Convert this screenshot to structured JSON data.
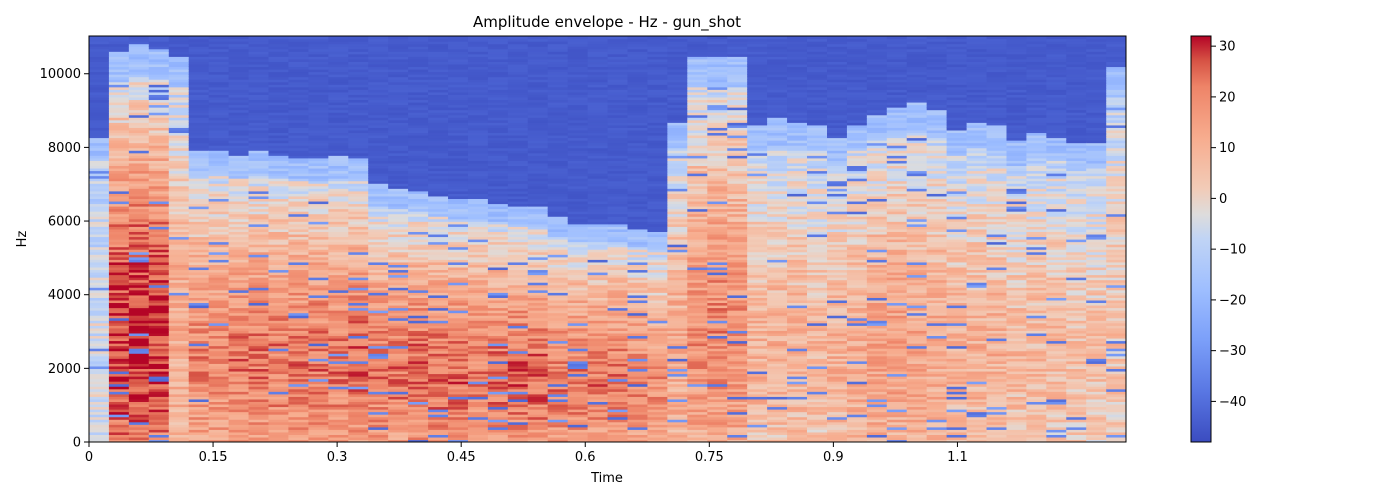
{
  "chart_data": {
    "type": "heatmap",
    "title": "Amplitude envelope - Hz - gun_shot",
    "xlabel": "Time",
    "ylabel": "Hz",
    "xlim": [
      0,
      1.2538
    ],
    "ylim": [
      0,
      11025
    ],
    "x_ticks": [
      0,
      0.15,
      0.3,
      0.45,
      0.6,
      0.75,
      0.9,
      1.05
    ],
    "x_tick_labels": [
      "0",
      "0.15",
      "0.3",
      "0.45",
      "0.6",
      "0.75",
      "0.9",
      "1.1"
    ],
    "y_ticks": [
      0,
      2000,
      4000,
      6000,
      8000,
      10000
    ],
    "y_tick_labels": [
      "0",
      "2000",
      "4000",
      "6000",
      "8000",
      "10000"
    ],
    "colorbar": {
      "range": [
        -48,
        32
      ],
      "colormap": "coolwarm",
      "ticks": [
        30,
        20,
        10,
        0,
        -10,
        -20,
        -30,
        -40
      ],
      "tick_labels": [
        "30",
        "20",
        "10",
        "0",
        "−10",
        "−20",
        "−30",
        "−40"
      ]
    },
    "frame_times": [
      0.0,
      0.0241,
      0.0482,
      0.0723,
      0.0965,
      0.1206,
      0.1447,
      0.1688,
      0.1929,
      0.217,
      0.2411,
      0.2653,
      0.2894,
      0.3135,
      0.3376,
      0.3617,
      0.3858,
      0.41,
      0.4341,
      0.4582,
      0.4823,
      0.5064,
      0.5305,
      0.5546,
      0.5788,
      0.6029,
      0.627,
      0.6511,
      0.6752,
      0.6993,
      0.7234,
      0.7476,
      0.7717,
      0.7958,
      0.8199,
      0.844,
      0.8681,
      0.8923,
      0.9164,
      0.9405,
      0.9646,
      0.9887,
      1.0128,
      1.0369,
      1.0611,
      1.0852,
      1.1093,
      1.1334,
      1.1575,
      1.1816,
      1.2057,
      1.2299
    ],
    "energy_cutoff_hz": [
      8300,
      10600,
      10800,
      10700,
      10500,
      7900,
      7900,
      7800,
      7900,
      7800,
      7750,
      7750,
      7800,
      7700,
      7000,
      6900,
      6800,
      6700,
      6600,
      6600,
      6500,
      6400,
      6400,
      6100,
      5900,
      5900,
      5900,
      5800,
      5700,
      8700,
      10500,
      10500,
      10500,
      8600,
      8800,
      8700,
      8600,
      8300,
      8600,
      8900,
      9100,
      9200,
      9000,
      8500,
      8700,
      8600,
      8200,
      8400,
      8300,
      8100,
      8100,
      10200
    ],
    "peak_level_db": [
      -5,
      30,
      32,
      30,
      12,
      20,
      20,
      22,
      22,
      22,
      22,
      22,
      22,
      24,
      22,
      22,
      24,
      24,
      24,
      22,
      24,
      24,
      24,
      22,
      22,
      22,
      22,
      20,
      18,
      12,
      18,
      20,
      18,
      10,
      10,
      10,
      8,
      10,
      12,
      15,
      15,
      14,
      12,
      10,
      10,
      10,
      8,
      8,
      8,
      6,
      6,
      5
    ]
  }
}
